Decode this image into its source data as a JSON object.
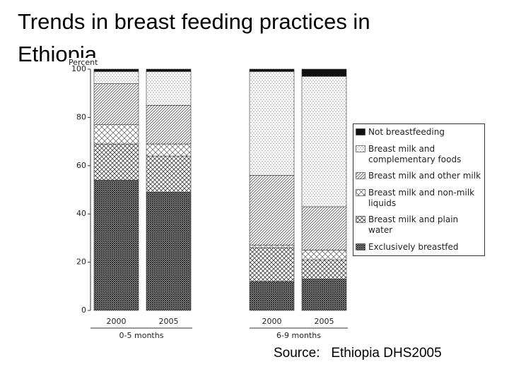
{
  "title": "Trends in breast feeding practices in Ethiopia",
  "source": "Source:   Ethiopia DHS2005",
  "chart_data": {
    "type": "stacked-bar",
    "y_label": "Percent",
    "categories": [
      "2000",
      "2005",
      "2000",
      "2005"
    ],
    "groups": [
      {
        "label": "0-5 months",
        "categories": [
          0,
          1
        ]
      },
      {
        "label": "6-9 months",
        "categories": [
          2,
          3
        ]
      }
    ],
    "ylim": [
      0,
      100
    ],
    "yticks": [
      0,
      20,
      40,
      60,
      80,
      100
    ],
    "series": [
      {
        "name": "Exclusively breastfed",
        "color": "#222222",
        "pattern": "dense-crosshatch",
        "values": [
          54,
          49,
          12,
          13
        ]
      },
      {
        "name": "Breast milk and plain water",
        "color": "#444444",
        "pattern": "crosshatch",
        "values": [
          15,
          15,
          14,
          8
        ]
      },
      {
        "name": "Breast milk and non-milk liquids",
        "color": "#555555",
        "pattern": "diamond",
        "values": [
          8,
          5,
          1,
          4
        ]
      },
      {
        "name": "Breast milk and other milk",
        "color": "#555555",
        "pattern": "diagonal",
        "values": [
          17,
          16,
          29,
          18
        ]
      },
      {
        "name": "Breast milk and complementary foods",
        "color": "#666666",
        "pattern": "dots",
        "values": [
          5,
          14,
          43,
          54
        ]
      },
      {
        "name": "Not breastfeeding",
        "color": "#111111",
        "pattern": "solid",
        "values": [
          1,
          1,
          1,
          3
        ]
      }
    ],
    "legend": "right"
  }
}
